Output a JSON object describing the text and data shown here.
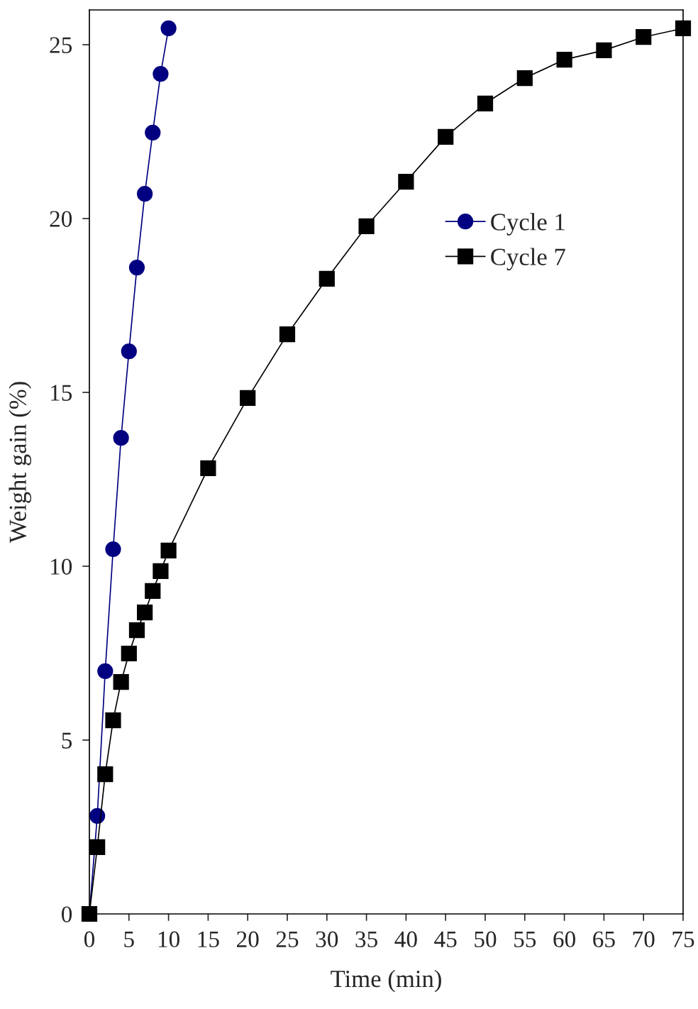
{
  "chart_data": {
    "type": "line",
    "xlabel": "Time (min)",
    "ylabel": "Weight gain (%)",
    "xlim": [
      0,
      75
    ],
    "ylim": [
      0,
      26
    ],
    "xticks": [
      0,
      5,
      10,
      15,
      20,
      25,
      30,
      35,
      40,
      45,
      50,
      55,
      60,
      65,
      70,
      75
    ],
    "yticks": [
      0,
      5,
      10,
      15,
      20,
      25
    ],
    "grid": false,
    "legend": "top right",
    "line_style": "solid",
    "series": [
      {
        "name": "Cycle 1",
        "color": "#000080",
        "marker": "circle",
        "x": [
          0,
          1,
          2,
          3,
          4,
          5,
          6,
          7,
          8,
          9,
          10
        ],
        "values": [
          0,
          2.82,
          6.98,
          10.49,
          13.69,
          16.18,
          18.59,
          20.71,
          22.47,
          24.16,
          25.47
        ]
      },
      {
        "name": "Cycle 7",
        "color": "#000000",
        "marker": "square",
        "x": [
          0,
          1,
          2,
          3,
          4,
          5,
          6,
          7,
          8,
          9,
          10,
          15,
          20,
          25,
          30,
          35,
          40,
          45,
          50,
          55,
          60,
          65,
          70,
          75
        ],
        "values": [
          0,
          1.92,
          4.02,
          5.57,
          6.67,
          7.49,
          8.16,
          8.67,
          9.29,
          9.86,
          10.45,
          12.82,
          14.84,
          16.67,
          18.27,
          19.78,
          21.06,
          22.35,
          23.31,
          24.04,
          24.57,
          24.84,
          25.22,
          25.47
        ]
      }
    ]
  }
}
